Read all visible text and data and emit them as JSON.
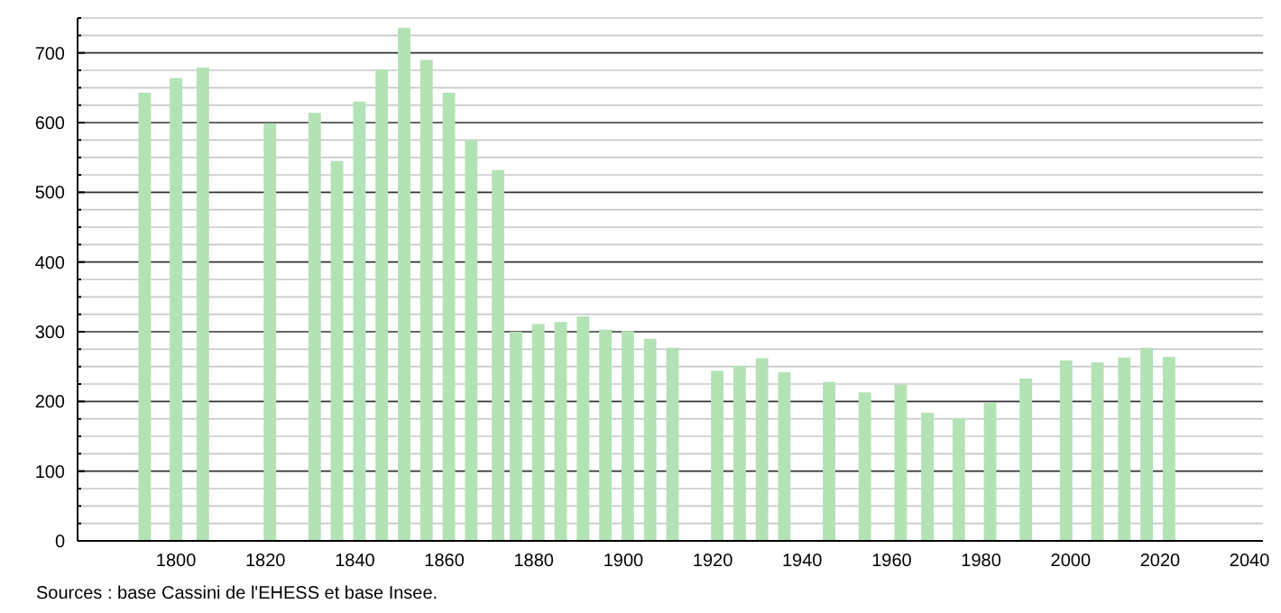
{
  "chart_data": {
    "type": "bar",
    "color": "#b3e3b5",
    "x": [
      1793,
      1800,
      1806,
      1821,
      1831,
      1836,
      1841,
      1846,
      1851,
      1856,
      1861,
      1866,
      1872,
      1876,
      1881,
      1886,
      1891,
      1896,
      1901,
      1906,
      1911,
      1921,
      1926,
      1931,
      1936,
      1946,
      1954,
      1962,
      1968,
      1975,
      1982,
      1990,
      1999,
      2006,
      2012,
      2017,
      2022
    ],
    "values": [
      643,
      664,
      679,
      599,
      614,
      545,
      630,
      676,
      736,
      690,
      643,
      575,
      532,
      300,
      311,
      314,
      322,
      303,
      301,
      290,
      277,
      244,
      251,
      262,
      242,
      228,
      213,
      224,
      184,
      176,
      198,
      233,
      259,
      256,
      263,
      277,
      264
    ],
    "xlim": [
      1778,
      2043
    ],
    "xticks": [
      1800,
      1820,
      1840,
      1860,
      1880,
      1900,
      1920,
      1940,
      1960,
      1980,
      2000,
      2020,
      2040
    ],
    "ylim": [
      0,
      750
    ],
    "yticks": [
      0,
      {
        "value": 25,
        "label": null
      },
      {
        "value": 50,
        "label": null
      },
      {
        "value": 75,
        "label": null
      },
      100,
      {
        "value": 125,
        "label": null
      },
      {
        "value": 150,
        "label": null
      },
      {
        "value": 175,
        "label": null
      },
      200,
      {
        "value": 225,
        "label": null
      },
      {
        "value": 250,
        "label": null
      },
      {
        "value": 275,
        "label": null
      },
      300,
      {
        "value": 325,
        "label": null
      },
      {
        "value": 350,
        "label": null
      },
      {
        "value": 375,
        "label": null
      },
      400,
      {
        "value": 425,
        "label": null
      },
      {
        "value": 450,
        "label": null
      },
      {
        "value": 475,
        "label": null
      },
      500,
      {
        "value": 525,
        "label": null
      },
      {
        "value": 550,
        "label": null
      },
      {
        "value": 575,
        "label": null
      },
      600,
      {
        "value": 625,
        "label": null
      },
      {
        "value": 650,
        "label": null
      },
      {
        "value": 675,
        "label": null
      },
      700,
      {
        "value": 725,
        "label": null
      },
      {
        "value": 750,
        "label": null
      }
    ],
    "grid": "y",
    "annotations": [
      "Sources : base Cassini de l'EHESS et base Insee."
    ]
  }
}
